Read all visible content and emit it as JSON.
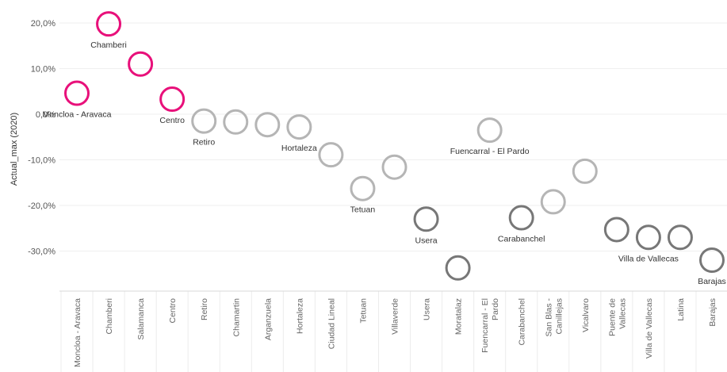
{
  "chart_data": {
    "type": "scatter",
    "ylabel": "Actual_max (2020)",
    "ylim": [
      -40,
      25
    ],
    "yticks": [
      20,
      10,
      0,
      -10,
      -20,
      -30
    ],
    "ytick_labels": [
      "20,0%",
      "10,0%",
      "0,0%",
      "-10,0%",
      "-20,0%",
      "-30,0%"
    ],
    "grid": true,
    "categories": [
      [
        "Moncloa - Aravaca"
      ],
      [
        "Chamberi"
      ],
      [
        "Salamanca"
      ],
      [
        "Centro"
      ],
      [
        "Retiro"
      ],
      [
        "Chamartin"
      ],
      [
        "Arganzuela"
      ],
      [
        "Hortaleza"
      ],
      [
        "Ciudad Lineal"
      ],
      [
        "Tetuan"
      ],
      [
        "Villaverde"
      ],
      [
        "Usera"
      ],
      [
        "Moratalaz"
      ],
      [
        "Fuencarral - El",
        "Pardo"
      ],
      [
        "Carabanchel"
      ],
      [
        "San Blas -",
        "Canillejas"
      ],
      [
        "Vicalvaro"
      ],
      [
        "Puente de",
        "Vallecas"
      ],
      [
        "Villa de Vallecas"
      ],
      [
        "Latina"
      ],
      [
        "Barajas"
      ]
    ],
    "values": [
      4.6,
      19.8,
      11.0,
      3.3,
      -1.5,
      -1.7,
      -2.3,
      -2.8,
      -8.9,
      -16.3,
      -11.6,
      -23.0,
      -33.7,
      -3.5,
      -22.7,
      -19.2,
      -12.5,
      -25.3,
      -27.0,
      -27.0,
      -32.0
    ],
    "groups": [
      "pink",
      "pink",
      "pink",
      "pink",
      "light",
      "light",
      "light",
      "light",
      "light",
      "light",
      "light",
      "dark",
      "dark",
      "light",
      "dark",
      "light",
      "light",
      "dark",
      "dark",
      "dark",
      "dark"
    ],
    "point_labels": [
      {
        "index": 0,
        "text": "Moncloa - Aravaca",
        "side": "below"
      },
      {
        "index": 1,
        "text": "Chamberi",
        "side": "below"
      },
      {
        "index": 3,
        "text": "Centro",
        "side": "below"
      },
      {
        "index": 4,
        "text": "Retiro",
        "side": "below"
      },
      {
        "index": 7,
        "text": "Hortaleza",
        "side": "below"
      },
      {
        "index": 9,
        "text": "Tetuan",
        "side": "below"
      },
      {
        "index": 11,
        "text": "Usera",
        "side": "below"
      },
      {
        "index": 13,
        "text": "Fuencarral - El Pardo",
        "side": "below"
      },
      {
        "index": 14,
        "text": "Carabanchel",
        "side": "below"
      },
      {
        "index": 18,
        "text": "Villa de Vallecas",
        "side": "below"
      },
      {
        "index": 20,
        "text": "Barajas",
        "side": "below"
      }
    ],
    "colors": {
      "pink": "#e8107a",
      "light": "#b5b5b5",
      "dark": "#777777"
    }
  }
}
